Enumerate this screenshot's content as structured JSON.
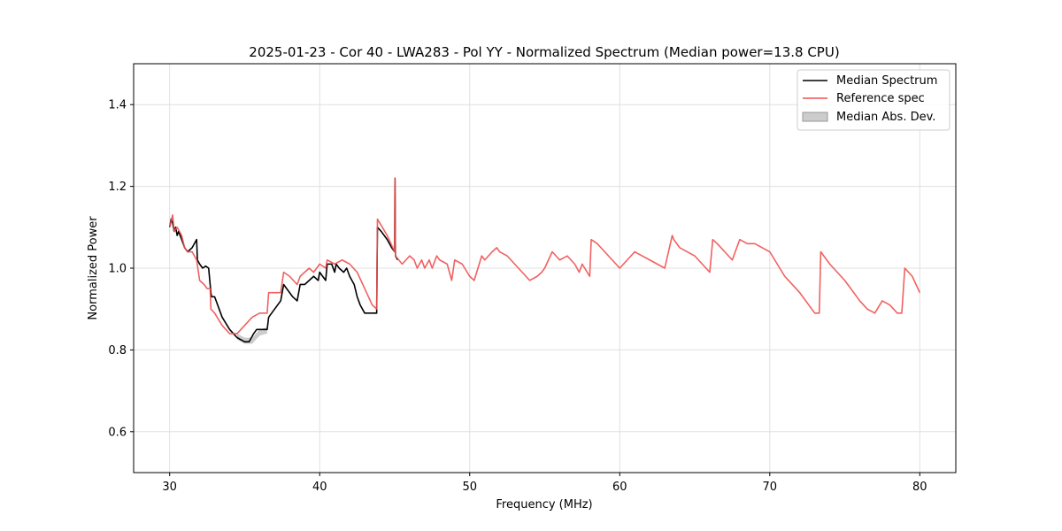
{
  "chart_data": {
    "type": "line",
    "title": "2025-01-23 - Cor 40 - LWA283 - Pol YY - Normalized Spectrum (Median power=13.8 CPU)",
    "xlabel": "Frequency (MHz)",
    "ylabel": "Normalized Power",
    "xlim": [
      27.6,
      82.4
    ],
    "ylim": [
      0.5,
      1.5
    ],
    "xticks": [
      30,
      40,
      50,
      60,
      70,
      80
    ],
    "yticks": [
      0.6,
      0.8,
      1.0,
      1.2,
      1.4
    ],
    "xtick_labels": [
      "30",
      "40",
      "50",
      "60",
      "70",
      "80"
    ],
    "ytick_labels": [
      "0.6",
      "0.8",
      "1.0",
      "1.2",
      "1.4"
    ],
    "grid": true,
    "legend_position": "top-right",
    "legend": [
      "Median Spectrum",
      "Reference spec",
      "Median Abs. Dev."
    ],
    "colors": {
      "median": "#000000",
      "reference": "#f05050",
      "mad_fill": "#aaaaaa",
      "grid": "#e0e0e0"
    },
    "series": [
      {
        "name": "Median Spectrum",
        "x": [
          30.0,
          30.1,
          30.2,
          30.3,
          30.4,
          30.5,
          30.6,
          30.7,
          30.8,
          31.0,
          31.2,
          31.5,
          31.8,
          31.85,
          32.0,
          32.2,
          32.4,
          32.6,
          32.75,
          32.8,
          33.0,
          33.2,
          33.5,
          34.0,
          34.5,
          35.0,
          35.3,
          35.6,
          35.8,
          36.0,
          36.5,
          36.6,
          37.0,
          37.4,
          37.6,
          37.8,
          38.2,
          38.5,
          38.7,
          39.0,
          39.3,
          39.6,
          39.9,
          40.0,
          40.4,
          40.5,
          40.8,
          41.0,
          41.1,
          41.3,
          41.6,
          41.8,
          42.0,
          42.3,
          42.5,
          42.7,
          43.0,
          43.5,
          43.8,
          43.85,
          44.1,
          44.5,
          44.8,
          45.0,
          45.02,
          45.05,
          45.2
        ],
        "y": [
          1.1,
          1.12,
          1.11,
          1.09,
          1.1,
          1.08,
          1.09,
          1.08,
          1.07,
          1.05,
          1.04,
          1.05,
          1.07,
          1.02,
          1.01,
          1.0,
          1.005,
          1.0,
          0.94,
          0.93,
          0.93,
          0.91,
          0.88,
          0.85,
          0.83,
          0.82,
          0.82,
          0.84,
          0.85,
          0.85,
          0.85,
          0.88,
          0.9,
          0.92,
          0.96,
          0.95,
          0.93,
          0.92,
          0.96,
          0.96,
          0.97,
          0.98,
          0.97,
          0.99,
          0.97,
          1.01,
          1.01,
          0.99,
          1.01,
          1.0,
          0.99,
          1.0,
          0.98,
          0.96,
          0.93,
          0.91,
          0.89,
          0.89,
          0.89,
          1.1,
          1.09,
          1.07,
          1.05,
          1.04,
          1.22,
          1.03,
          1.02
        ]
      },
      {
        "name": "Reference spec",
        "x": [
          30.0,
          30.2,
          30.3,
          30.5,
          30.8,
          31.0,
          31.2,
          31.5,
          31.8,
          32.0,
          32.3,
          32.5,
          32.7,
          32.75,
          33.0,
          33.5,
          34.0,
          34.5,
          35.0,
          35.5,
          36.0,
          36.5,
          36.6,
          37.0,
          37.4,
          37.6,
          38.0,
          38.5,
          38.7,
          39.0,
          39.3,
          39.6,
          40.0,
          40.4,
          40.5,
          41.0,
          41.5,
          42.0,
          42.5,
          43.0,
          43.5,
          43.8,
          43.85,
          44.5,
          45.0,
          45.02,
          45.05,
          45.5,
          46.0,
          46.3,
          46.5,
          46.8,
          47.0,
          47.3,
          47.5,
          47.8,
          48.0,
          48.5,
          48.8,
          49.0,
          49.5,
          50.0,
          50.3,
          50.8,
          51.0,
          51.5,
          51.8,
          52.0,
          52.5,
          53.0,
          53.5,
          54.0,
          54.5,
          54.8,
          55.0,
          55.5,
          56.0,
          56.5,
          57.0,
          57.3,
          57.5,
          58.0,
          58.1,
          58.5,
          59.0,
          60.0,
          60.5,
          61.0,
          61.5,
          62.0,
          62.5,
          63.0,
          63.5,
          63.6,
          64.0,
          65.0,
          66.0,
          66.2,
          66.5,
          67.0,
          67.5,
          68.0,
          68.5,
          69.0,
          69.5,
          70.0,
          71.0,
          72.0,
          73.0,
          73.3,
          73.4,
          74.0,
          75.0,
          76.0,
          76.5,
          77.0,
          77.5,
          78.0,
          78.5,
          78.8,
          79.0,
          79.5,
          80.0
        ],
        "y": [
          1.1,
          1.13,
          1.09,
          1.1,
          1.08,
          1.05,
          1.04,
          1.04,
          1.02,
          0.97,
          0.96,
          0.95,
          0.95,
          0.9,
          0.89,
          0.86,
          0.84,
          0.84,
          0.86,
          0.88,
          0.89,
          0.89,
          0.94,
          0.94,
          0.94,
          0.99,
          0.98,
          0.96,
          0.98,
          0.99,
          1.0,
          0.99,
          1.01,
          1.0,
          1.02,
          1.01,
          1.02,
          1.01,
          0.99,
          0.95,
          0.91,
          0.9,
          1.12,
          1.08,
          1.04,
          1.22,
          1.03,
          1.01,
          1.03,
          1.02,
          1.0,
          1.02,
          1.0,
          1.02,
          1.0,
          1.03,
          1.02,
          1.01,
          0.97,
          1.02,
          1.01,
          0.98,
          0.97,
          1.03,
          1.02,
          1.04,
          1.05,
          1.04,
          1.03,
          1.01,
          0.99,
          0.97,
          0.98,
          0.99,
          1.0,
          1.04,
          1.02,
          1.03,
          1.01,
          0.99,
          1.01,
          0.98,
          1.07,
          1.06,
          1.04,
          1.0,
          1.02,
          1.04,
          1.03,
          1.02,
          1.01,
          1.0,
          1.08,
          1.07,
          1.05,
          1.03,
          0.99,
          1.07,
          1.06,
          1.04,
          1.02,
          1.07,
          1.06,
          1.06,
          1.05,
          1.04,
          0.98,
          0.94,
          0.89,
          0.89,
          1.04,
          1.01,
          0.97,
          0.92,
          0.9,
          0.89,
          0.92,
          0.91,
          0.89,
          0.89,
          1.0,
          0.98,
          0.94
        ]
      }
    ],
    "mad_band": {
      "x": [
        34.5,
        35.0,
        35.5,
        36.0,
        36.5
      ],
      "y_low": [
        0.825,
        0.815,
        0.815,
        0.835,
        0.84
      ],
      "y_high": [
        0.84,
        0.83,
        0.83,
        0.85,
        0.855
      ]
    }
  }
}
